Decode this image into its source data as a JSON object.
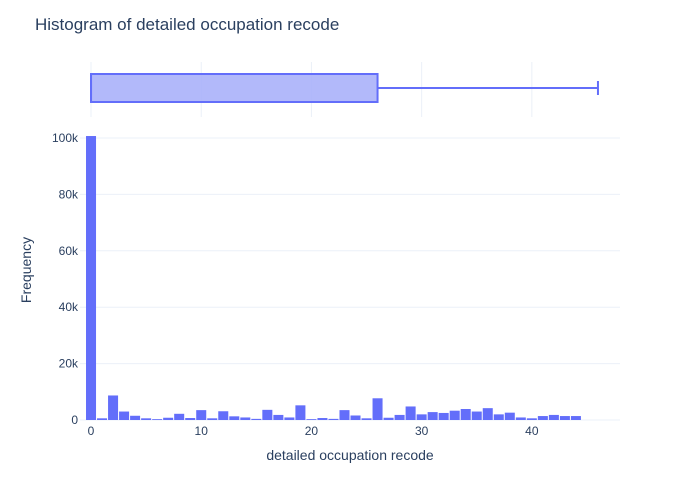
{
  "chart_data": {
    "type": "bar",
    "title": "Histogram of detailed occupation recode",
    "xlabel": "detailed occupation recode",
    "ylabel": "Frequency",
    "xlim": [
      -1,
      48
    ],
    "ylim": [
      0,
      100000
    ],
    "x_ticks": [
      0,
      10,
      20,
      30,
      40
    ],
    "x_tick_labels": [
      "0",
      "10",
      "20",
      "30",
      "40"
    ],
    "y_ticks": [
      0,
      20000,
      40000,
      60000,
      80000,
      100000
    ],
    "y_tick_labels": [
      "0",
      "20k",
      "40k",
      "60k",
      "80k",
      "100k"
    ],
    "bin_width": 1,
    "x": [
      0,
      1,
      2,
      3,
      4,
      5,
      6,
      7,
      8,
      9,
      10,
      11,
      12,
      13,
      14,
      15,
      16,
      17,
      18,
      19,
      20,
      21,
      22,
      23,
      24,
      25,
      26,
      27,
      28,
      29,
      30,
      31,
      32,
      33,
      34,
      35,
      36,
      37,
      38,
      39,
      40,
      41,
      42,
      43,
      44
    ],
    "values": [
      100700,
      600,
      8700,
      3000,
      1500,
      600,
      300,
      800,
      2200,
      700,
      3500,
      600,
      3100,
      1300,
      900,
      400,
      3600,
      1800,
      900,
      5200,
      300,
      700,
      400,
      3500,
      1600,
      600,
      7700,
      800,
      1800,
      4800,
      2000,
      2800,
      2500,
      3300,
      3900,
      3000,
      4200,
      2000,
      2600,
      900,
      600,
      1400,
      1800,
      1400,
      1400
    ],
    "box": {
      "min": 0,
      "q1": 0,
      "median": 0,
      "q3": 26,
      "max": 46
    },
    "colors": {
      "bar": "#636efa",
      "box_fill": "#aab1fa",
      "box_line": "#636efa",
      "grid": "#ebf0f8",
      "text": "#2a3f5f"
    },
    "grid": true,
    "legend": "none"
  }
}
